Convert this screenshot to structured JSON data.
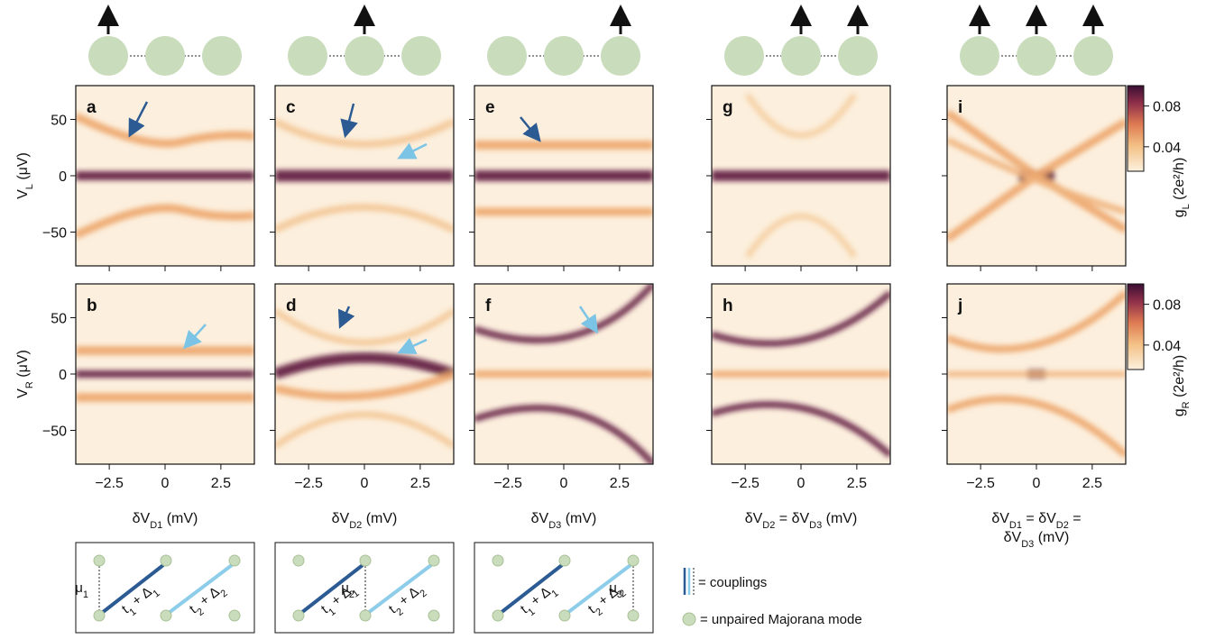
{
  "figure": {
    "panel_letters": [
      [
        "a",
        "b"
      ],
      [
        "c",
        "d"
      ],
      [
        "e",
        "f"
      ],
      [
        "g",
        "h"
      ],
      [
        "i",
        "j"
      ]
    ],
    "xlim": [
      -4,
      4
    ],
    "ylim": [
      -80,
      80
    ],
    "xticks": [
      {
        "value": -2.5,
        "label": "−2.5"
      },
      0,
      2.5
    ],
    "yticks": [
      50,
      0,
      {
        "value": -50,
        "label": "−50"
      }
    ],
    "ylabels": [
      [
        "V",
        {
          "sub": "L"
        },
        " (μV)"
      ],
      [
        "V",
        {
          "sub": "R"
        },
        " (μV)"
      ]
    ],
    "xlabels": [
      [
        [
          "δV",
          {
            "sub": "D1"
          },
          " (mV)"
        ]
      ],
      [
        [
          "δV",
          {
            "sub": "D2"
          },
          " (mV)"
        ]
      ],
      [
        [
          "δV",
          {
            "sub": "D3"
          },
          " (mV)"
        ]
      ],
      [
        [
          "δV",
          {
            "sub": "D2"
          },
          " = δV",
          {
            "sub": "D3"
          },
          " (mV)"
        ]
      ],
      [
        [
          "δV",
          {
            "sub": "D1"
          },
          " = δV",
          {
            "sub": "D2"
          },
          " ="
        ],
        [
          "δV",
          {
            "sub": "D3"
          },
          " (mV)"
        ]
      ]
    ],
    "colorbars": [
      {
        "label": [
          "g",
          {
            "sub": "L"
          },
          " (2e²/h)"
        ],
        "clim": [
          0.016,
          0.1
        ],
        "ticks": [
          0.08,
          0.04
        ]
      },
      {
        "label": [
          "g",
          {
            "sub": "R"
          },
          " (2e²/h)"
        ],
        "clim": [
          0.016,
          0.1
        ],
        "ticks": [
          0.08,
          0.04
        ]
      }
    ],
    "schematics": [
      {
        "mu": [
          "μ",
          {
            "sub": "1"
          }
        ],
        "t1": [
          "t",
          {
            "sub": "1"
          },
          " + Δ",
          {
            "sub": "1"
          }
        ],
        "t2": [
          "t",
          {
            "sub": "2"
          },
          " + Δ",
          {
            "sub": "2"
          }
        ]
      },
      {
        "mu": [
          "μ",
          {
            "sub": "2"
          }
        ],
        "t1": [
          "t",
          {
            "sub": "1"
          },
          " + Δ",
          {
            "sub": "1"
          }
        ],
        "t2": [
          "t",
          {
            "sub": "2"
          },
          " + Δ",
          {
            "sub": "2"
          }
        ]
      },
      {
        "mu": [
          "μ",
          {
            "sub": "3"
          }
        ],
        "t1": [
          "t",
          {
            "sub": "1"
          },
          " + Δ",
          {
            "sub": "1"
          }
        ],
        "t2": [
          "t",
          {
            "sub": "2"
          },
          " + Δ",
          {
            "sub": "2"
          }
        ]
      }
    ],
    "legend": [
      "= couplings",
      "= unpaired Majorana mode"
    ]
  }
}
